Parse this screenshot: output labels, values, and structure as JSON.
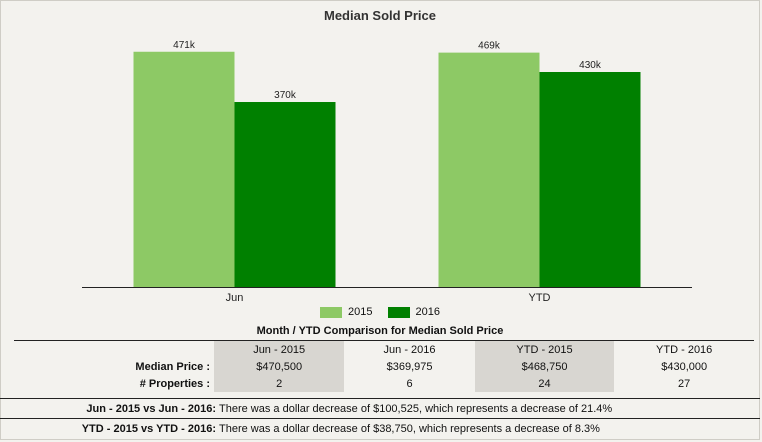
{
  "chart_data": {
    "type": "bar",
    "title": "Median Sold Price",
    "categories": [
      "Jun",
      "YTD"
    ],
    "series": [
      {
        "name": "2015",
        "values": [
          470500,
          468750
        ],
        "labels": [
          "471k",
          "469k"
        ],
        "color": "#8dc965"
      },
      {
        "name": "2016",
        "values": [
          369975,
          430000
        ],
        "labels": [
          "370k",
          "430k"
        ],
        "color": "#008000"
      }
    ],
    "ylim": [
      0,
      500000
    ],
    "xlabel": "",
    "ylabel": "",
    "legend": "bottom",
    "grid": false
  },
  "table": {
    "title": "Month / YTD Comparison for Median Sold Price",
    "columns": [
      "Jun - 2015",
      "Jun - 2016",
      "YTD - 2015",
      "YTD - 2016"
    ],
    "rows": [
      {
        "label": "Median Price :",
        "cells": [
          "$470,500",
          "$369,975",
          "$468,750",
          "$430,000"
        ]
      },
      {
        "label": "# Properties :",
        "cells": [
          "2",
          "6",
          "24",
          "27"
        ]
      }
    ]
  },
  "summary": [
    {
      "label": "Jun - 2015 vs Jun - 2016:",
      "text": "There was a dollar decrease of $100,525, which represents a decrease of 21.4%"
    },
    {
      "label": "YTD - 2015 vs YTD - 2016:",
      "text": "There was a dollar decrease of $38,750, which represents a decrease of 8.3%"
    }
  ]
}
